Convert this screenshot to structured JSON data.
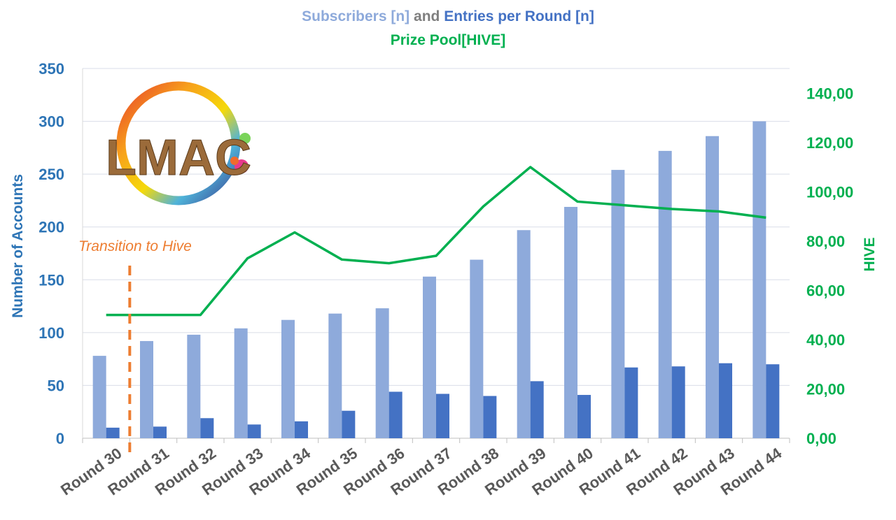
{
  "chart_data": {
    "type": "bar",
    "title_parts": {
      "subscribers": "Subscribers [n]",
      "and": "and",
      "entries": "Entries per Round [n]",
      "prize": "Prize Pool[HIVE]"
    },
    "ylabel_left": "Number of Accounts",
    "ylabel_right": "HIVE",
    "ylim_left": [
      0,
      350
    ],
    "yticks_left": [
      "0",
      "50",
      "100",
      "150",
      "200",
      "250",
      "300",
      "350"
    ],
    "ylim_right": [
      0,
      150
    ],
    "yticks_right": [
      "0,00",
      "20,00",
      "40,00",
      "60,00",
      "80,00",
      "100,00",
      "120,00",
      "140,00"
    ],
    "categories": [
      "Round 30",
      "Round 31",
      "Round 32",
      "Round 33",
      "Round 34",
      "Round 35",
      "Round 36",
      "Round 37",
      "Round 38",
      "Round 39",
      "Round 40",
      "Round 41",
      "Round 42",
      "Round 43",
      "Round 44"
    ],
    "series": [
      {
        "name": "Subscribers [n]",
        "type": "bar",
        "axis": "left",
        "color": "#8eaadb",
        "values": [
          78,
          92,
          98,
          104,
          112,
          118,
          123,
          153,
          169,
          197,
          219,
          254,
          272,
          286,
          300
        ]
      },
      {
        "name": "Entries per Round [n]",
        "type": "bar",
        "axis": "left",
        "color": "#4472c4",
        "values": [
          10,
          11,
          19,
          13,
          16,
          26,
          44,
          42,
          40,
          54,
          41,
          67,
          68,
          71,
          70
        ]
      },
      {
        "name": "Prize Pool[HIVE]",
        "type": "line",
        "axis": "right",
        "color": "#00b050",
        "values": [
          50,
          50,
          50,
          73,
          83.5,
          72.5,
          71,
          74,
          94,
          110,
          96,
          94.5,
          93,
          92,
          89.5
        ]
      }
    ],
    "annotation": {
      "text": "Transition to Hive",
      "between": [
        "Round 30",
        "Round 31"
      ],
      "color": "#ed7d31"
    },
    "grid": true
  },
  "logo": {
    "text": "LMAC"
  }
}
